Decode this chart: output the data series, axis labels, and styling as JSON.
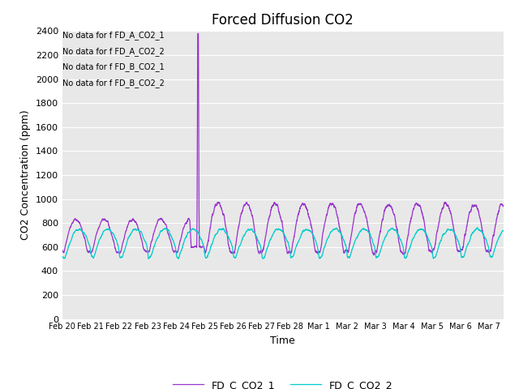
{
  "title": "Forced Diffusion CO2",
  "xlabel": "Time",
  "ylabel": "CO2 Concentration (ppm)",
  "ylim": [
    0,
    2400
  ],
  "yticks": [
    0,
    200,
    400,
    600,
    800,
    1000,
    1200,
    1400,
    1600,
    1800,
    2000,
    2200,
    2400
  ],
  "color_line1": "#9933CC",
  "color_line2": "#00CCCC",
  "legend_labels": [
    "FD_C_CO2_1",
    "FD_C_CO2_2"
  ],
  "no_data_labels": [
    "No data for f FD_A_CO2_1",
    "No data for f FD_A_CO2_2",
    "No data for f FD_B_CO2_1",
    "No data for f FD_B_CO2_2"
  ],
  "background_color": "#e8e8e8",
  "fig_background": "#ffffff",
  "xtick_labels": [
    "Feb 20",
    "Feb 21",
    "Feb 22",
    "Feb 23",
    "Feb 24",
    "Feb 25",
    "Feb 26",
    "Feb 27",
    "Feb 28",
    "Mar 1",
    "Mar 2",
    "Mar 3",
    "Mar 4",
    "Mar 5",
    "Mar 6",
    "Mar 7"
  ],
  "n_points": 4080,
  "start_day": 0,
  "end_day": 15.5,
  "seed": 42
}
